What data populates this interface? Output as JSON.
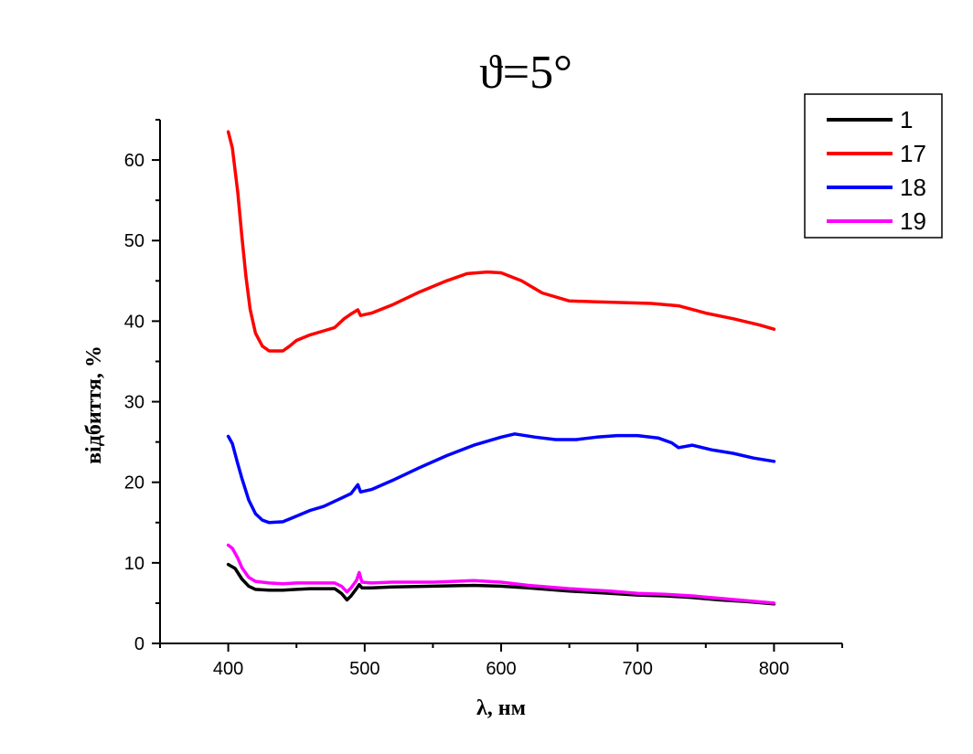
{
  "chart_data": {
    "type": "line",
    "title": "ϑ=5°",
    "xlabel": "λ, нм",
    "ylabel": "відбиття, %",
    "xlim": [
      350,
      850
    ],
    "ylim": [
      0,
      65
    ],
    "xticks": [
      400,
      500,
      600,
      700,
      800
    ],
    "yticks": [
      0,
      10,
      20,
      30,
      40,
      50,
      60
    ],
    "grid": false,
    "legend_position": "top-right",
    "series": [
      {
        "name": "1",
        "color": "#000000",
        "points": [
          [
            400,
            9.8
          ],
          [
            405,
            9.3
          ],
          [
            410,
            8.0
          ],
          [
            415,
            7.1
          ],
          [
            420,
            6.7
          ],
          [
            430,
            6.6
          ],
          [
            440,
            6.6
          ],
          [
            450,
            6.7
          ],
          [
            460,
            6.8
          ],
          [
            470,
            6.8
          ],
          [
            478,
            6.8
          ],
          [
            483,
            6.2
          ],
          [
            487,
            5.4
          ],
          [
            490,
            5.9
          ],
          [
            494,
            6.8
          ],
          [
            496,
            7.3
          ],
          [
            498,
            6.9
          ],
          [
            505,
            6.9
          ],
          [
            520,
            7.0
          ],
          [
            550,
            7.1
          ],
          [
            580,
            7.2
          ],
          [
            600,
            7.1
          ],
          [
            620,
            6.9
          ],
          [
            650,
            6.5
          ],
          [
            680,
            6.2
          ],
          [
            700,
            6.0
          ],
          [
            720,
            5.9
          ],
          [
            740,
            5.7
          ],
          [
            760,
            5.4
          ],
          [
            780,
            5.2
          ],
          [
            800,
            4.9
          ]
        ]
      },
      {
        "name": "17",
        "color": "#ff0000",
        "points": [
          [
            400,
            63.5
          ],
          [
            403,
            61.5
          ],
          [
            407,
            56.0
          ],
          [
            410,
            50.5
          ],
          [
            413,
            45.5
          ],
          [
            416,
            41.5
          ],
          [
            420,
            38.5
          ],
          [
            425,
            36.9
          ],
          [
            430,
            36.3
          ],
          [
            440,
            36.3
          ],
          [
            445,
            36.9
          ],
          [
            450,
            37.6
          ],
          [
            460,
            38.3
          ],
          [
            470,
            38.8
          ],
          [
            478,
            39.2
          ],
          [
            485,
            40.3
          ],
          [
            490,
            40.9
          ],
          [
            495,
            41.4
          ],
          [
            497,
            40.7
          ],
          [
            505,
            41.0
          ],
          [
            520,
            42.0
          ],
          [
            540,
            43.6
          ],
          [
            560,
            45.0
          ],
          [
            575,
            45.9
          ],
          [
            590,
            46.1
          ],
          [
            600,
            46.0
          ],
          [
            615,
            45.0
          ],
          [
            630,
            43.5
          ],
          [
            650,
            42.5
          ],
          [
            670,
            42.4
          ],
          [
            690,
            42.3
          ],
          [
            710,
            42.2
          ],
          [
            730,
            41.9
          ],
          [
            750,
            41.0
          ],
          [
            770,
            40.3
          ],
          [
            790,
            39.5
          ],
          [
            800,
            39.0
          ]
        ]
      },
      {
        "name": "18",
        "color": "#0000ff",
        "points": [
          [
            400,
            25.7
          ],
          [
            403,
            24.8
          ],
          [
            407,
            22.3
          ],
          [
            410,
            20.5
          ],
          [
            415,
            17.8
          ],
          [
            420,
            16.1
          ],
          [
            425,
            15.3
          ],
          [
            430,
            15.0
          ],
          [
            440,
            15.1
          ],
          [
            450,
            15.8
          ],
          [
            460,
            16.5
          ],
          [
            470,
            17.0
          ],
          [
            480,
            17.8
          ],
          [
            490,
            18.6
          ],
          [
            495,
            19.7
          ],
          [
            497,
            18.8
          ],
          [
            505,
            19.1
          ],
          [
            520,
            20.2
          ],
          [
            540,
            21.8
          ],
          [
            560,
            23.3
          ],
          [
            580,
            24.6
          ],
          [
            600,
            25.6
          ],
          [
            610,
            26.0
          ],
          [
            625,
            25.6
          ],
          [
            640,
            25.3
          ],
          [
            655,
            25.3
          ],
          [
            670,
            25.6
          ],
          [
            685,
            25.8
          ],
          [
            700,
            25.8
          ],
          [
            715,
            25.5
          ],
          [
            725,
            24.9
          ],
          [
            730,
            24.3
          ],
          [
            740,
            24.6
          ],
          [
            755,
            24.0
          ],
          [
            770,
            23.6
          ],
          [
            785,
            23.0
          ],
          [
            800,
            22.6
          ]
        ]
      },
      {
        "name": "19",
        "color": "#ff00ff",
        "points": [
          [
            400,
            12.2
          ],
          [
            403,
            11.8
          ],
          [
            407,
            10.6
          ],
          [
            410,
            9.4
          ],
          [
            415,
            8.2
          ],
          [
            420,
            7.7
          ],
          [
            430,
            7.5
          ],
          [
            440,
            7.4
          ],
          [
            450,
            7.5
          ],
          [
            460,
            7.5
          ],
          [
            470,
            7.5
          ],
          [
            478,
            7.5
          ],
          [
            483,
            7.1
          ],
          [
            487,
            6.4
          ],
          [
            490,
            6.9
          ],
          [
            494,
            7.8
          ],
          [
            496,
            8.8
          ],
          [
            498,
            7.6
          ],
          [
            505,
            7.5
          ],
          [
            520,
            7.6
          ],
          [
            550,
            7.6
          ],
          [
            580,
            7.8
          ],
          [
            600,
            7.6
          ],
          [
            620,
            7.2
          ],
          [
            650,
            6.8
          ],
          [
            680,
            6.5
          ],
          [
            700,
            6.2
          ],
          [
            720,
            6.1
          ],
          [
            740,
            5.9
          ],
          [
            760,
            5.6
          ],
          [
            780,
            5.3
          ],
          [
            800,
            5.0
          ]
        ]
      }
    ]
  }
}
